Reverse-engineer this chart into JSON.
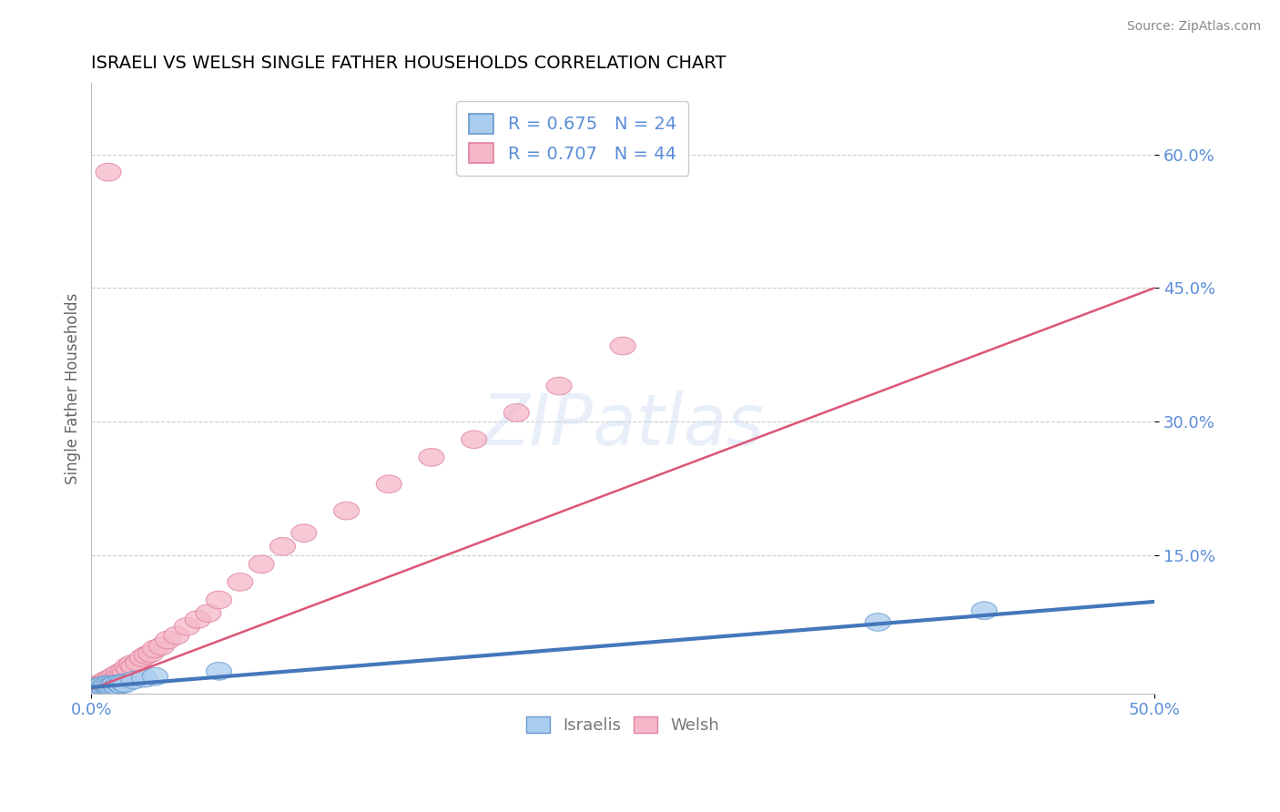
{
  "title": "ISRAELI VS WELSH SINGLE FATHER HOUSEHOLDS CORRELATION CHART",
  "source": "Source: ZipAtlas.com",
  "ylabel": "Single Father Households",
  "xlim": [
    0.0,
    0.5
  ],
  "ylim": [
    -0.005,
    0.68
  ],
  "yticks": [
    0.15,
    0.3,
    0.45,
    0.6
  ],
  "ytick_labels": [
    "15.0%",
    "30.0%",
    "45.0%",
    "60.0%"
  ],
  "xticks": [
    0.0,
    0.5
  ],
  "xtick_labels": [
    "0.0%",
    "50.0%"
  ],
  "legend_entries": [
    {
      "label": "R = 0.675   N = 24"
    },
    {
      "label": "R = 0.707   N = 44"
    }
  ],
  "watermark": "ZIPatlas",
  "background_color": "#ffffff",
  "grid_color": "#cccccc",
  "title_color": "#000000",
  "tick_label_color": "#5b8dd9",
  "israelis_fill": "#aaccee",
  "welsh_fill": "#f5b8c8",
  "israelis_edge": "#6699cc",
  "welsh_edge": "#e080a0",
  "israelis_line": "#4477bb",
  "welsh_line": "#dd5577",
  "bottom_legend_color": "#777777",
  "israeli_scatter_x": [
    0.002,
    0.003,
    0.004,
    0.005,
    0.005,
    0.006,
    0.007,
    0.007,
    0.008,
    0.008,
    0.009,
    0.01,
    0.011,
    0.012,
    0.013,
    0.014,
    0.015,
    0.016,
    0.02,
    0.025,
    0.03,
    0.06,
    0.37,
    0.42
  ],
  "israeli_scatter_y": [
    0.002,
    0.001,
    0.003,
    0.001,
    0.004,
    0.002,
    0.003,
    0.005,
    0.002,
    0.004,
    0.003,
    0.004,
    0.005,
    0.003,
    0.006,
    0.005,
    0.007,
    0.006,
    0.01,
    0.012,
    0.014,
    0.02,
    0.075,
    0.088
  ],
  "welsh_scatter_x": [
    0.002,
    0.003,
    0.004,
    0.005,
    0.006,
    0.006,
    0.007,
    0.008,
    0.009,
    0.01,
    0.011,
    0.012,
    0.013,
    0.014,
    0.015,
    0.016,
    0.017,
    0.018,
    0.019,
    0.02,
    0.022,
    0.024,
    0.026,
    0.028,
    0.03,
    0.033,
    0.036,
    0.04,
    0.045,
    0.05,
    0.055,
    0.06,
    0.07,
    0.08,
    0.09,
    0.1,
    0.12,
    0.14,
    0.16,
    0.18,
    0.2,
    0.22,
    0.25,
    0.008
  ],
  "welsh_scatter_y": [
    0.004,
    0.002,
    0.006,
    0.005,
    0.008,
    0.006,
    0.01,
    0.008,
    0.012,
    0.01,
    0.015,
    0.012,
    0.018,
    0.015,
    0.02,
    0.018,
    0.025,
    0.022,
    0.028,
    0.025,
    0.03,
    0.035,
    0.038,
    0.04,
    0.045,
    0.048,
    0.055,
    0.06,
    0.07,
    0.078,
    0.085,
    0.1,
    0.12,
    0.14,
    0.16,
    0.175,
    0.2,
    0.23,
    0.26,
    0.28,
    0.31,
    0.34,
    0.385,
    0.58
  ],
  "isr_line_x0": 0.0,
  "isr_line_y0": 0.002,
  "isr_line_x1": 0.5,
  "isr_line_y1": 0.098,
  "welsh_line_x0": 0.0,
  "welsh_line_y0": 0.0,
  "welsh_line_x1": 0.5,
  "welsh_line_y1": 0.45
}
